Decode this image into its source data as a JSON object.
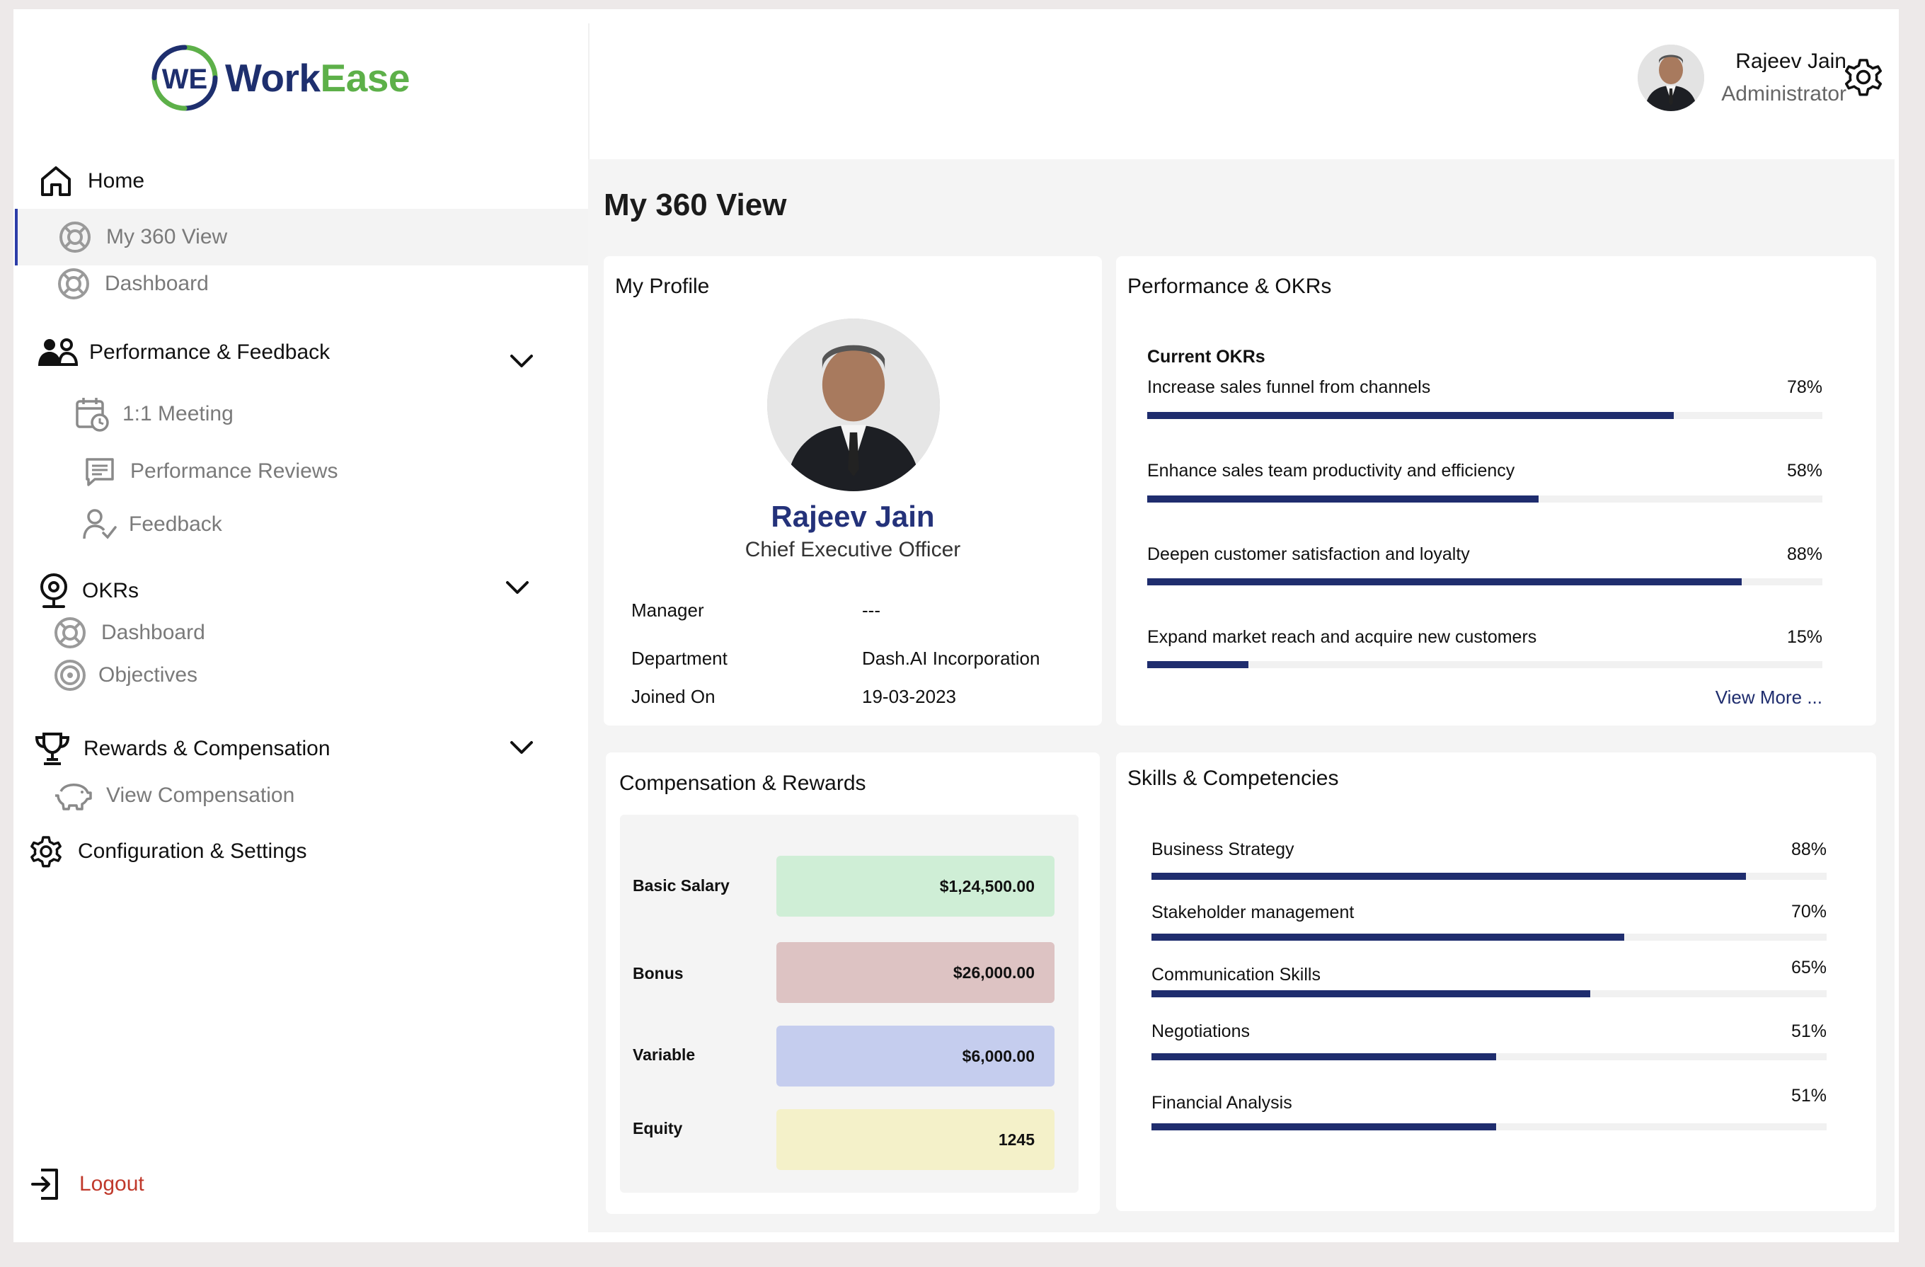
{
  "app": {
    "logo_mark": "WE",
    "logo_work": "Work",
    "logo_ease": "Ease"
  },
  "colors": {
    "brand_navy": "#1e2f6e",
    "brand_green": "#5db049",
    "progress": "#1f2d6e",
    "active_indicator": "#2d3da8",
    "logout": "#c0392b",
    "basic_salary_bg": "#cfeed6",
    "bonus_bg": "#ddc3c3",
    "variable_bg": "#c5cdee",
    "equity_bg": "#f4f1c9"
  },
  "sidebar": {
    "home": "Home",
    "my360": "My 360 View",
    "dashboard": "Dashboard",
    "perf_feedback": "Performance & Feedback",
    "one_on_one": "1:1 Meeting",
    "perf_reviews": "Performance Reviews",
    "feedback": "Feedback",
    "okrs": "OKRs",
    "okr_dashboard": "Dashboard",
    "objectives": "Objectives",
    "rewards": "Rewards & Compensation",
    "view_comp": "View Compensation",
    "config": "Configuration & Settings",
    "logout": "Logout"
  },
  "header": {
    "user_name": "Rajeev Jain",
    "user_role": "Administrator"
  },
  "main": {
    "page_title": "My 360 View"
  },
  "profile": {
    "title": "My Profile",
    "name": "Rajeev Jain",
    "job_title": "Chief Executive Officer",
    "manager_label": "Manager",
    "manager_value": "---",
    "department_label": "Department",
    "department_value": "Dash.AI Incorporation",
    "joined_label": "Joined On",
    "joined_value": "19-03-2023"
  },
  "okrs": {
    "title": "Performance & OKRs",
    "current_label": "Current OKRs",
    "items": [
      {
        "label": "Increase sales funnel from channels",
        "pct": "78%",
        "value": 78
      },
      {
        "label": "Enhance sales team productivity and efficiency",
        "pct": "58%",
        "value": 58
      },
      {
        "label": "Deepen customer satisfaction and loyalty",
        "pct": "88%",
        "value": 88
      },
      {
        "label": "Expand market reach and acquire new customers",
        "pct": "15%",
        "value": 15
      }
    ],
    "view_more": "View More ..."
  },
  "compensation": {
    "title": "Compensation & Rewards",
    "items": [
      {
        "label": "Basic Salary",
        "value": "$1,24,500.00"
      },
      {
        "label": "Bonus",
        "value": "$26,000.00"
      },
      {
        "label": "Variable",
        "value": "$6,000.00"
      },
      {
        "label": "Equity",
        "value": "1245"
      }
    ]
  },
  "skills": {
    "title": "Skills & Competencies",
    "items": [
      {
        "label": "Business Strategy",
        "pct": "88%",
        "value": 88
      },
      {
        "label": "Stakeholder management",
        "pct": "70%",
        "value": 70
      },
      {
        "label": "Communication Skills",
        "pct": "65%",
        "value": 65
      },
      {
        "label": "Negotiations",
        "pct": "51%",
        "value": 51
      },
      {
        "label": "Financial Analysis",
        "pct": "51%",
        "value": 51
      }
    ]
  }
}
